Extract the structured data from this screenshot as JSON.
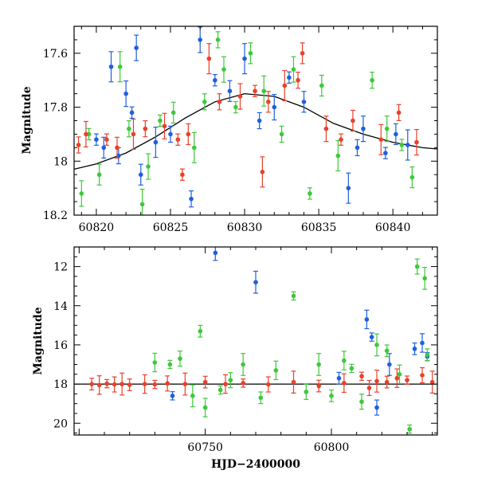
{
  "chart_data": [
    {
      "type": "scatter",
      "xlabel": "",
      "ylabel": "Magnitude",
      "xlim": [
        60818.5,
        60843.0
      ],
      "ylim": [
        18.2,
        17.5
      ],
      "y_inverted": true,
      "xticks": [
        60820,
        60825,
        60830,
        60835,
        60840
      ],
      "yticks": [
        17.6,
        17.8,
        18.0,
        18.2
      ],
      "ytick_labels": [
        "17.6",
        "17.8",
        "18",
        "18.2"
      ],
      "grid": false,
      "model_curve": {
        "color": "#000000",
        "x": [
          60818.5,
          60820,
          60822,
          60824,
          60826,
          60828,
          60830,
          60832,
          60834,
          60836,
          60838,
          60840,
          60842,
          60843
        ],
        "y": [
          18.03,
          18.01,
          17.97,
          17.91,
          17.84,
          17.78,
          17.75,
          17.76,
          17.8,
          17.86,
          17.9,
          17.93,
          17.95,
          17.955
        ]
      },
      "series": [
        {
          "color": "#1f5fe0",
          "x": [
            60820,
            60820.5,
            60821,
            60821.5,
            60822,
            60822.4,
            60823,
            60824,
            60825,
            60827,
            60828,
            60829,
            60830,
            60831,
            60832,
            60833,
            60834,
            60837,
            60837.6,
            60838,
            60839.5,
            60840.2,
            60841,
            60826.4,
            60822.7
          ],
          "y": [
            17.92,
            17.95,
            17.65,
            17.98,
            17.75,
            17.82,
            18.05,
            17.93,
            17.9,
            17.55,
            17.7,
            17.74,
            17.62,
            17.85,
            17.8,
            17.69,
            17.78,
            18.1,
            17.95,
            17.88,
            17.97,
            17.9,
            17.94,
            18.14,
            17.58
          ]
        },
        {
          "color": "#3ec83a",
          "x": [
            60819,
            60819.5,
            60820.2,
            60821.6,
            60822.2,
            60823.5,
            60824.3,
            60825.2,
            60826.6,
            60827.3,
            60828.6,
            60829.4,
            60830.4,
            60831.3,
            60832.5,
            60833.3,
            60834.4,
            60835.2,
            60836.3,
            60838.6,
            60839.6,
            60840.6,
            60841.3,
            60823.1,
            60828.2
          ],
          "y": [
            18.12,
            17.9,
            18.05,
            17.65,
            17.88,
            18.02,
            17.85,
            17.82,
            17.95,
            17.78,
            17.66,
            17.8,
            17.6,
            17.74,
            17.9,
            17.66,
            18.12,
            17.72,
            17.98,
            17.7,
            17.88,
            17.94,
            18.06,
            18.16,
            17.55
          ]
        },
        {
          "color": "#e8412b",
          "x": [
            60818.8,
            60819.3,
            60820.7,
            60821.4,
            60822.5,
            60823.3,
            60824.6,
            60825.5,
            60826.2,
            60827.6,
            60828.3,
            60829.7,
            60830.7,
            60831.6,
            60832.7,
            60833.6,
            60835.5,
            60836.5,
            60837.3,
            60839.2,
            60840.4,
            60841.6,
            60825.8,
            60833.9,
            60831.2
          ],
          "y": [
            17.94,
            17.9,
            17.92,
            17.95,
            17.9,
            17.88,
            17.87,
            17.92,
            17.9,
            17.62,
            17.78,
            17.76,
            17.74,
            17.78,
            17.72,
            17.7,
            17.88,
            17.92,
            17.85,
            17.92,
            17.82,
            17.93,
            18.05,
            17.6,
            18.04
          ]
        }
      ]
    },
    {
      "type": "scatter",
      "xlabel": "HJD−2400000",
      "ylabel": "Magnitude",
      "xlim": [
        60698.0,
        60842.0
      ],
      "ylim": [
        20.6,
        11.0
      ],
      "y_inverted": true,
      "xticks": [
        60750,
        60800
      ],
      "yticks": [
        12,
        14,
        16,
        18,
        20
      ],
      "grid": false,
      "model_curve": {
        "color": "#000000",
        "x": [
          60698,
          60842
        ],
        "y": [
          18.0,
          18.0
        ]
      },
      "series": [
        {
          "color": "#1f5fe0",
          "x": [
            60737,
            60754,
            60770,
            60803,
            60814,
            60816,
            60818,
            60823,
            60833,
            60836,
            60838
          ],
          "y": [
            18.6,
            11.3,
            12.8,
            17.7,
            14.7,
            15.6,
            19.2,
            17.0,
            16.2,
            15.9,
            16.6
          ]
        },
        {
          "color": "#3ec83a",
          "x": [
            60730,
            60736,
            60740,
            60745,
            60748,
            60750,
            60756,
            60760,
            60765,
            60772,
            60778,
            60785,
            60790,
            60795,
            60800,
            60805,
            60808,
            60812,
            60818,
            60822,
            60827,
            60831,
            60834,
            60837,
            60838
          ],
          "y": [
            16.9,
            17.0,
            16.7,
            18.6,
            15.3,
            19.2,
            18.3,
            17.8,
            17.0,
            18.7,
            17.3,
            13.5,
            18.4,
            17.0,
            18.6,
            16.8,
            17.2,
            18.9,
            16.0,
            16.3,
            17.5,
            20.3,
            12.0,
            12.6,
            16.5
          ]
        },
        {
          "color": "#e8412b",
          "x": [
            60705,
            60708,
            60711,
            60714,
            60717,
            60720,
            60726,
            60730,
            60735,
            60742,
            60750,
            60758,
            60765,
            60775,
            60785,
            60795,
            60805,
            60812,
            60815,
            60818,
            60822,
            60826,
            60830,
            60836,
            60840
          ],
          "y": [
            18.0,
            18.05,
            17.98,
            18.02,
            18.0,
            18.04,
            18.0,
            18.02,
            17.97,
            18.0,
            17.9,
            18.0,
            17.95,
            18.02,
            17.9,
            18.1,
            17.95,
            17.6,
            18.2,
            17.85,
            17.9,
            17.7,
            17.8,
            17.55,
            17.9
          ]
        }
      ]
    }
  ]
}
